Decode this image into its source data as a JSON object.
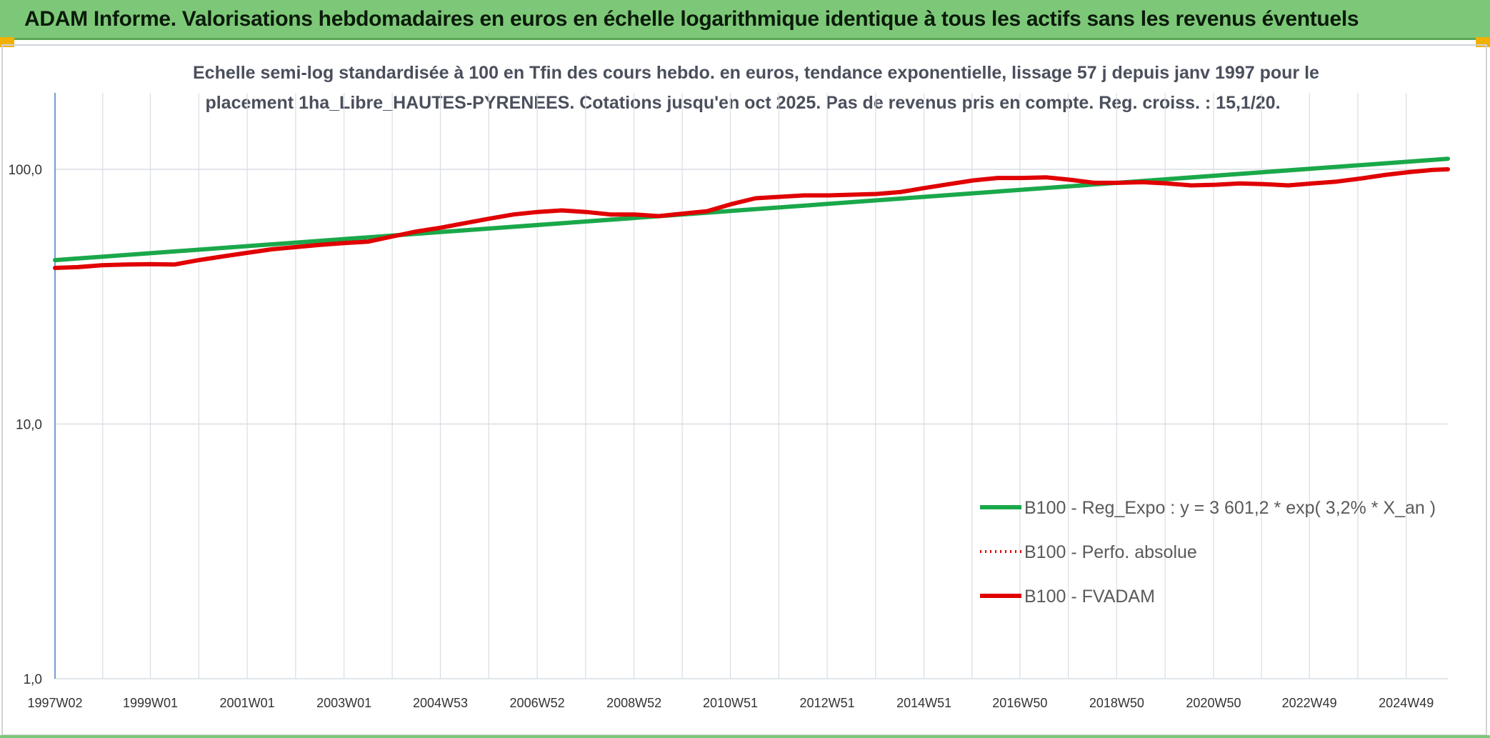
{
  "banner": {
    "title": "ADAM Informe. Valorisations hebdomadaires en euros en échelle logarithmique identique à tous les actifs sans les revenus éventuels"
  },
  "colors": {
    "banner_bg": "#7dc878",
    "accent_corner": "#f2b100",
    "regression_line": "#1aa84a",
    "fvadam_line": "#e00000",
    "perf_line": "#e00000",
    "axis_line": "#4a7cc0",
    "grid": "#d9dde3"
  },
  "chart_data": {
    "type": "line",
    "title_line1": "Echelle semi-log standardisée à 100 en Tfin des cours hebdo. en euros, tendance exponentielle, lissage 57 j depuis janv 1997 pour le",
    "title_line2": "placement 1ha_Libre_HAUTES-PYRENEES. Cotations jusqu'en oct 2025. Pas de revenus pris en compte. Reg. croiss. : 15,1/20.",
    "y_scale": "log",
    "ylim": [
      1,
      200
    ],
    "y_ticks": [
      {
        "value": 100,
        "label": "100,0"
      },
      {
        "value": 10,
        "label": "10,0"
      },
      {
        "value": 1,
        "label": "1,0"
      }
    ],
    "x_range": [
      1997.03,
      2025.8
    ],
    "x_ticks": [
      {
        "value": 1997.03,
        "label": "1997W02"
      },
      {
        "value": 1999.0,
        "label": "1999W01"
      },
      {
        "value": 2001.0,
        "label": "2001W01"
      },
      {
        "value": 2003.0,
        "label": "2003W01"
      },
      {
        "value": 2004.99,
        "label": "2004W53"
      },
      {
        "value": 2006.99,
        "label": "2006W52"
      },
      {
        "value": 2008.99,
        "label": "2008W52"
      },
      {
        "value": 2010.98,
        "label": "2010W51"
      },
      {
        "value": 2012.98,
        "label": "2012W51"
      },
      {
        "value": 2014.98,
        "label": "2014W51"
      },
      {
        "value": 2016.96,
        "label": "2016W50"
      },
      {
        "value": 2018.96,
        "label": "2018W50"
      },
      {
        "value": 2020.96,
        "label": "2020W50"
      },
      {
        "value": 2022.94,
        "label": "2022W49"
      },
      {
        "value": 2024.94,
        "label": "2024W49"
      }
    ],
    "grid": "vertical and horizontal",
    "legend_position": "bottom-right",
    "series": [
      {
        "name": "B100 - Reg_Expo : y = 3 601,2 * exp( 3,2% *  X_an )",
        "style": "solid",
        "color": "#1aa84a",
        "points": [
          [
            1997.03,
            44.0
          ],
          [
            2025.8,
            110.0
          ]
        ]
      },
      {
        "name": "B100 - Perfo. absolue",
        "style": "dotted",
        "color": "#e00000",
        "points": []
      },
      {
        "name": "B100 - FVADAM",
        "style": "solid",
        "color": "#e00000",
        "points": [
          [
            1997.03,
            41.0
          ],
          [
            1997.5,
            41.3
          ],
          [
            1998.0,
            42.0
          ],
          [
            1998.5,
            42.3
          ],
          [
            1999.0,
            42.4
          ],
          [
            1999.5,
            42.3
          ],
          [
            2000.0,
            44.0
          ],
          [
            2000.5,
            45.5
          ],
          [
            2001.0,
            47.0
          ],
          [
            2001.5,
            48.5
          ],
          [
            2002.0,
            49.5
          ],
          [
            2002.5,
            50.5
          ],
          [
            2003.0,
            51.3
          ],
          [
            2003.5,
            52.0
          ],
          [
            2004.0,
            54.5
          ],
          [
            2004.5,
            57.0
          ],
          [
            2005.0,
            59.0
          ],
          [
            2005.5,
            61.5
          ],
          [
            2006.0,
            64.0
          ],
          [
            2006.5,
            66.5
          ],
          [
            2007.0,
            68.0
          ],
          [
            2007.5,
            69.0
          ],
          [
            2008.0,
            68.0
          ],
          [
            2008.5,
            66.5
          ],
          [
            2009.0,
            66.5
          ],
          [
            2009.5,
            65.5
          ],
          [
            2010.0,
            67.0
          ],
          [
            2010.5,
            68.5
          ],
          [
            2011.0,
            73.0
          ],
          [
            2011.5,
            77.0
          ],
          [
            2012.0,
            78.0
          ],
          [
            2012.5,
            79.0
          ],
          [
            2013.0,
            79.0
          ],
          [
            2013.5,
            79.5
          ],
          [
            2014.0,
            80.0
          ],
          [
            2014.5,
            81.5
          ],
          [
            2015.0,
            84.5
          ],
          [
            2015.5,
            87.5
          ],
          [
            2016.0,
            90.5
          ],
          [
            2016.5,
            92.5
          ],
          [
            2017.0,
            92.5
          ],
          [
            2017.5,
            93.0
          ],
          [
            2018.0,
            91.0
          ],
          [
            2018.5,
            88.5
          ],
          [
            2019.0,
            88.5
          ],
          [
            2019.5,
            89.0
          ],
          [
            2020.0,
            88.0
          ],
          [
            2020.5,
            86.5
          ],
          [
            2021.0,
            87.0
          ],
          [
            2021.5,
            88.0
          ],
          [
            2022.0,
            87.5
          ],
          [
            2022.5,
            86.5
          ],
          [
            2023.0,
            88.0
          ],
          [
            2023.5,
            89.5
          ],
          [
            2024.0,
            92.0
          ],
          [
            2024.5,
            95.0
          ],
          [
            2025.0,
            97.5
          ],
          [
            2025.5,
            99.5
          ],
          [
            2025.8,
            100.0
          ]
        ]
      }
    ]
  }
}
